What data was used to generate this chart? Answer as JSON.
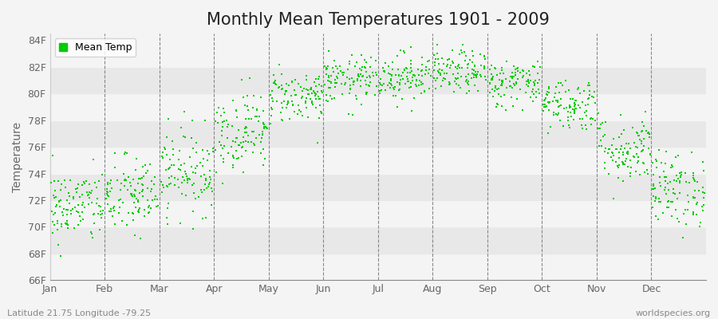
{
  "title": "Monthly Mean Temperatures 1901 - 2009",
  "ylabel": "Temperature",
  "xlabel": "",
  "footnote_left": "Latitude 21.75 Longitude -79.25",
  "footnote_right": "worldspecies.org",
  "legend_label": "Mean Temp",
  "ylim": [
    66,
    84.5
  ],
  "yticks": [
    66,
    68,
    70,
    72,
    74,
    76,
    78,
    80,
    82,
    84
  ],
  "ytick_labels": [
    "66F",
    "68F",
    "70F",
    "72F",
    "74F",
    "76F",
    "78F",
    "80F",
    "82F",
    "84F"
  ],
  "months": [
    "Jan",
    "Feb",
    "Mar",
    "Apr",
    "May",
    "Jun",
    "Jul",
    "Aug",
    "Sep",
    "Oct",
    "Nov",
    "Dec"
  ],
  "monthly_means": [
    71.5,
    72.3,
    74.2,
    77.2,
    79.8,
    81.0,
    81.3,
    81.6,
    80.8,
    79.2,
    75.8,
    72.8
  ],
  "monthly_stds": [
    1.4,
    1.5,
    1.6,
    1.5,
    1.0,
    0.9,
    0.9,
    0.8,
    0.9,
    1.0,
    1.3,
    1.4
  ],
  "n_years": 109,
  "dot_color": "#00cc00",
  "dot_size": 3,
  "bg_color": "#f4f4f4",
  "plot_bg_light": "#f4f4f4",
  "plot_bg_dark": "#e8e8e8",
  "grid_line_color": "#888888",
  "title_fontsize": 15,
  "axis_label_fontsize": 10,
  "tick_fontsize": 9,
  "footnote_fontsize": 8
}
